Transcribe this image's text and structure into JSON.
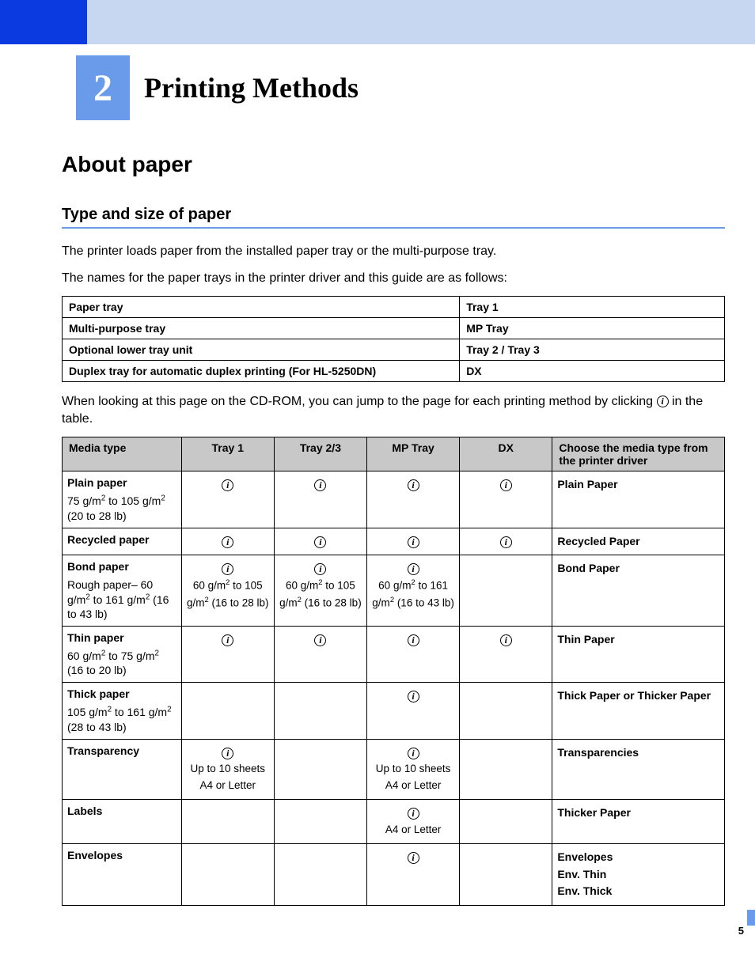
{
  "header": {
    "chapter_number": "2",
    "chapter_title": "Printing Methods"
  },
  "headings": {
    "about": "About paper",
    "type_size": "Type and size of paper"
  },
  "paragraphs": {
    "p1": "The printer loads paper from the installed paper tray or the multi-purpose tray.",
    "p2": "The names for the paper trays in the printer driver and this guide are as follows:",
    "p3_a": "When looking at this page on the CD-ROM, you can jump to the page for each printing method by clicking ",
    "p3_b": " in the table."
  },
  "tray_table": {
    "rows": [
      {
        "label": "Paper tray",
        "value": "Tray 1"
      },
      {
        "label": "Multi-purpose tray",
        "value": "MP Tray"
      },
      {
        "label": "Optional lower tray unit",
        "value": "Tray 2 / Tray 3"
      },
      {
        "label": "Duplex tray for automatic duplex printing (For HL-5250DN)",
        "value": "DX"
      }
    ]
  },
  "media_table": {
    "columns": [
      "Media type",
      "Tray 1",
      "Tray 2/3",
      "MP Tray",
      "DX",
      "Choose the media type from the printer driver"
    ],
    "rows": [
      {
        "name": "Plain paper",
        "sub_html": "75 g/m<sup>2</sup> to 105 g/m<sup>2</sup> (20 to 28 lb)",
        "tray1": {
          "icon": true
        },
        "tray23": {
          "icon": true
        },
        "mp": {
          "icon": true
        },
        "dx": {
          "icon": true
        },
        "driver": "Plain Paper"
      },
      {
        "name": "Recycled paper",
        "sub_html": "",
        "tray1": {
          "icon": true
        },
        "tray23": {
          "icon": true
        },
        "mp": {
          "icon": true
        },
        "dx": {
          "icon": true
        },
        "driver": "Recycled Paper"
      },
      {
        "name": "Bond paper",
        "sub_html": "Rough paper–  60 g/m<sup>2</sup> to 161 g/m<sup>2</sup> (16 to 43 lb)",
        "tray1": {
          "icon": true,
          "text_html": "60 g/m<sup>2</sup> to 105 g/m<sup>2</sup> (16 to 28 lb)"
        },
        "tray23": {
          "icon": true,
          "text_html": "60 g/m<sup>2</sup> to 105 g/m<sup>2</sup> (16 to 28 lb)"
        },
        "mp": {
          "icon": true,
          "text_html": "60 g/m<sup>2</sup> to 161 g/m<sup>2</sup> (16 to 43 lb)"
        },
        "dx": {},
        "driver": "Bond Paper"
      },
      {
        "name": "Thin paper",
        "sub_html": "60 g/m<sup>2</sup> to 75 g/m<sup>2</sup> (16 to 20 lb)",
        "tray1": {
          "icon": true
        },
        "tray23": {
          "icon": true
        },
        "mp": {
          "icon": true
        },
        "dx": {
          "icon": true
        },
        "driver": "Thin Paper"
      },
      {
        "name": "Thick paper",
        "sub_html": "105 g/m<sup>2</sup> to 161 g/m<sup>2</sup> (28 to 43 lb)",
        "tray1": {},
        "tray23": {},
        "mp": {
          "icon": true
        },
        "dx": {},
        "driver_html": "<b>Thick Paper</b> or <b>Thicker Paper</b>"
      },
      {
        "name": "Transparency",
        "sub_html": "",
        "tray1": {
          "icon": true,
          "text_html": "Up to 10 sheets<br>A4 or Letter"
        },
        "tray23": {},
        "mp": {
          "icon": true,
          "text_html": "Up to 10 sheets<br>A4 or Letter"
        },
        "dx": {},
        "driver": "Transparencies"
      },
      {
        "name": "Labels",
        "sub_html": "",
        "tray1": {},
        "tray23": {},
        "mp": {
          "icon": true,
          "text_html": "A4 or Letter"
        },
        "dx": {},
        "driver": "Thicker Paper"
      },
      {
        "name": "Envelopes",
        "sub_html": "",
        "tray1": {},
        "tray23": {},
        "mp": {
          "icon": true
        },
        "dx": {},
        "driver_html": "<b>Envelopes</b><br><b>Env. Thin</b><br><b>Env. Thick</b>"
      }
    ]
  },
  "page_number": "5",
  "colors": {
    "header_light": "#c7d7f2",
    "header_dark": "#0b3be0",
    "chapter_bg": "#6a9bea",
    "table_header": "#c8c8c8"
  }
}
